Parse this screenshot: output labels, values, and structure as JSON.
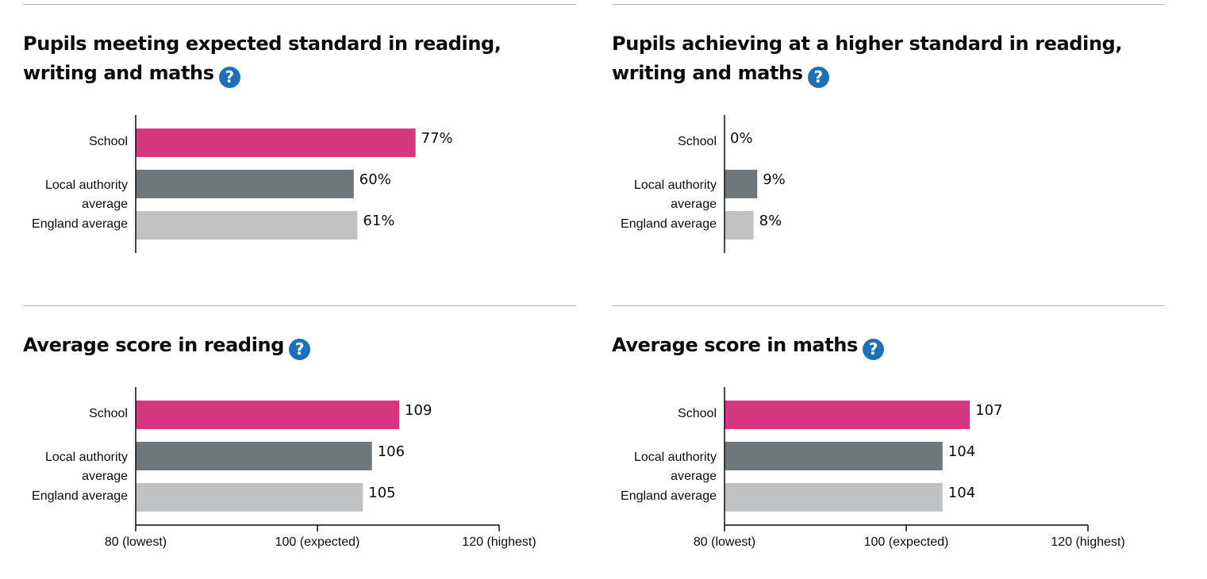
{
  "colors": {
    "school": "#d53880",
    "local_authority": "#6f777b",
    "england": "#bfc1c3",
    "help": "#1d70b8"
  },
  "help_icon": "question-mark-icon",
  "panels": [
    {
      "title": "Pupils meeting expected standard in reading, writing and maths"
    },
    {
      "title": "Pupils achieving at a higher standard in reading, writing and maths"
    },
    {
      "title": "Average score in reading"
    },
    {
      "title": "Average score in maths"
    }
  ],
  "chart_data": [
    {
      "type": "bar",
      "orientation": "horizontal",
      "title": "Pupils meeting expected standard in reading, writing and maths",
      "categories": [
        "School",
        "Local authority average",
        "England average"
      ],
      "values": [
        77,
        60,
        61
      ],
      "value_labels": [
        "77%",
        "60%",
        "61%"
      ],
      "xlim": [
        0,
        100
      ],
      "grid": false
    },
    {
      "type": "bar",
      "orientation": "horizontal",
      "title": "Pupils achieving at a higher standard in reading, writing and maths",
      "categories": [
        "School",
        "Local authority average",
        "England average"
      ],
      "values": [
        0,
        9,
        8
      ],
      "value_labels": [
        "0%",
        "9%",
        "8%"
      ],
      "xlim": [
        0,
        100
      ],
      "grid": false
    },
    {
      "type": "bar",
      "orientation": "horizontal",
      "title": "Average score in reading",
      "categories": [
        "School",
        "Local authority average",
        "England average"
      ],
      "values": [
        109,
        106,
        105
      ],
      "value_labels": [
        "109",
        "106",
        "105"
      ],
      "xlim": [
        80,
        120
      ],
      "ticks": [
        80,
        100,
        120
      ],
      "tick_labels": [
        "80 (lowest)",
        "100 (expected)",
        "120 (highest)"
      ],
      "grid": false
    },
    {
      "type": "bar",
      "orientation": "horizontal",
      "title": "Average score in maths",
      "categories": [
        "School",
        "Local authority average",
        "England average"
      ],
      "values": [
        107,
        104,
        104
      ],
      "value_labels": [
        "107",
        "104",
        "104"
      ],
      "xlim": [
        80,
        120
      ],
      "ticks": [
        80,
        100,
        120
      ],
      "tick_labels": [
        "80 (lowest)",
        "100 (expected)",
        "120 (highest)"
      ],
      "grid": false
    }
  ]
}
